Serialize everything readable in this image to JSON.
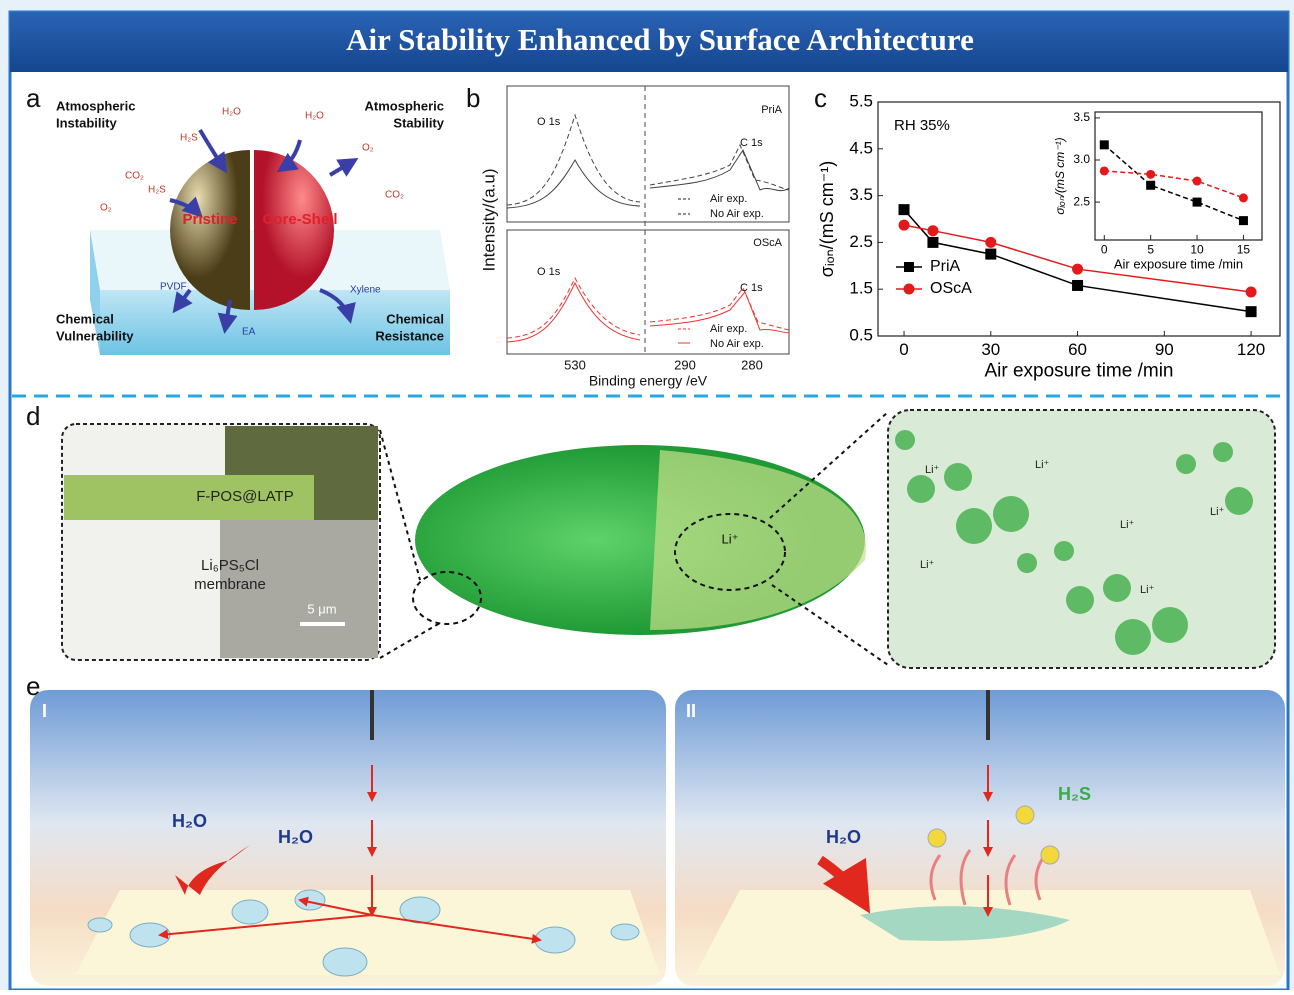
{
  "header": {
    "title": "Air Stability Enhanced by Surface Architecture"
  },
  "panel_labels": [
    "a",
    "b",
    "c",
    "d",
    "e"
  ],
  "panel_a": {
    "top_left": [
      "Atmospheric",
      "Instability"
    ],
    "top_right": [
      "Atmospheric",
      "Stability"
    ],
    "bottom_left": [
      "Chemical",
      "Vulnerability"
    ],
    "bottom_right": [
      "Chemical",
      "Resistance"
    ],
    "sphere_left": "Pristine",
    "sphere_right": "Core-Shell",
    "molecules": [
      "H₂O",
      "H₂O",
      "H₂S",
      "H₂S",
      "CO₂",
      "CO₂",
      "O₂",
      "O₂",
      "PVDF",
      "Xylene",
      "EA"
    ]
  },
  "panel_b": {
    "ylabel": "Intensity/(a.u)",
    "xlabel": "Binding energy /eV",
    "top_sample": "PriA",
    "bottom_sample": "OScA",
    "peaks": [
      "O 1s",
      "C 1s",
      "O 1s",
      "C 1s"
    ],
    "legend": [
      "Air exp.",
      "No Air exp.",
      "Air exp.",
      "No Air exp."
    ],
    "xtick_labels": [
      "530",
      "290",
      "280"
    ]
  },
  "chart_data": [
    {
      "type": "line",
      "annotation": "RH 35%",
      "xlabel": "Air exposure time /min",
      "ylabel": "σᵢₒₙ/(mS cm⁻¹)",
      "x": [
        0,
        10,
        30,
        60,
        120
      ],
      "xlim": [
        -9,
        130
      ],
      "xticks": [
        0,
        30,
        60,
        90,
        120
      ],
      "ylim": [
        0.5,
        5.5
      ],
      "yticks": [
        0.5,
        1.5,
        2.5,
        3.5,
        4.5,
        5.5
      ],
      "legend": "center left",
      "grid": false,
      "series": [
        {
          "name": "PriA",
          "color": "#000000",
          "marker": "square",
          "linestyle": "solid",
          "values": [
            3.2,
            2.5,
            2.25,
            1.58,
            1.02
          ]
        },
        {
          "name": "OScA",
          "color": "#e31a1c",
          "marker": "circle",
          "linestyle": "solid",
          "values": [
            2.87,
            2.75,
            2.5,
            1.93,
            1.44
          ]
        }
      ]
    },
    {
      "type": "line",
      "xlabel": "Air exposure time /min",
      "ylabel": "σᵢₒₙ/(mS cm⁻¹)",
      "x": [
        0,
        5,
        10,
        15
      ],
      "xlim": [
        -1,
        17
      ],
      "xticks": [
        0,
        5,
        10,
        15
      ],
      "ylim": [
        2.05,
        3.57
      ],
      "yticks": [
        2.5,
        {
          "value": 3,
          "label": "3.0"
        },
        3.5
      ],
      "grid": false,
      "series": [
        {
          "color": "#000000",
          "marker": "square",
          "linestyle": "dashed",
          "values": [
            3.18,
            2.7,
            2.5,
            2.28
          ]
        },
        {
          "color": "#e31a1c",
          "marker": "circle",
          "linestyle": "dashed",
          "values": [
            2.87,
            2.83,
            2.75,
            2.55
          ]
        }
      ]
    }
  ],
  "panel_d": {
    "coating": "F-POS@LATP",
    "membrane": [
      "Li₆PS₅Cl",
      "membrane"
    ],
    "scale": "5 μm",
    "ion": "Li⁺"
  },
  "panel_e": {
    "left": "I",
    "right": "II",
    "water": [
      "H₂O",
      "H₂O",
      "H₂O"
    ],
    "gas": "H₂S"
  }
}
